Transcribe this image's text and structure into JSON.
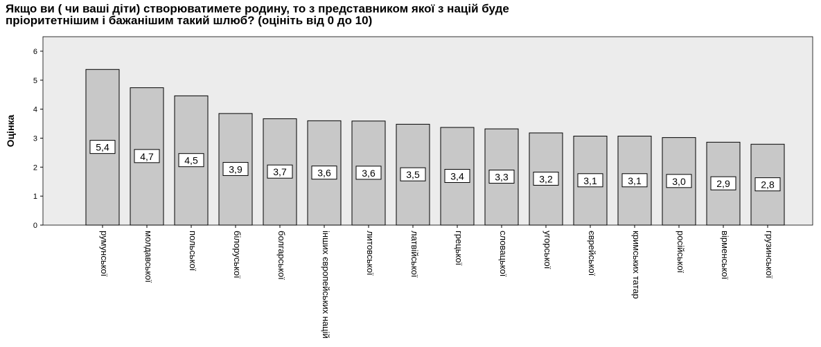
{
  "chart_data": {
    "type": "bar",
    "title": [
      "Якщо ви ( чи ваші діти) створюватимете родину, то з представником якої з націй буде",
      "пріоритетнішим і бажанішим такий шлюб? (оцініть від 0 до 10)"
    ],
    "ylabel": "Оцінка",
    "xlabel": "",
    "ylim": [
      0,
      6.5
    ],
    "yticks": [
      0,
      1,
      2,
      3,
      4,
      5,
      6
    ],
    "grid": false,
    "categories": [
      "румунської",
      "молдавської",
      "польської",
      "білоруської",
      "болгарської",
      "інших європейських націй",
      "литовської",
      "латвійської",
      "грецької",
      "словацької",
      "угорської",
      "єврейської",
      "кримських татар",
      "російської",
      "вірменської",
      "грузинської"
    ],
    "values": [
      5.37,
      4.74,
      4.46,
      3.85,
      3.67,
      3.6,
      3.59,
      3.48,
      3.37,
      3.32,
      3.18,
      3.07,
      3.07,
      3.02,
      2.86,
      2.79
    ],
    "data_labels": [
      "5,4",
      "4,7",
      "4,5",
      "3,9",
      "3,7",
      "3,6",
      "3,6",
      "3,5",
      "3,4",
      "3,3",
      "3,2",
      "3,1",
      "3,1",
      "3,0",
      "2,9",
      "2,8"
    ],
    "colors": {
      "plot_background": "#ececec",
      "bar_fill": "#c8c8c8",
      "bar_stroke": "#000000",
      "label_box": "#ffffff"
    }
  }
}
